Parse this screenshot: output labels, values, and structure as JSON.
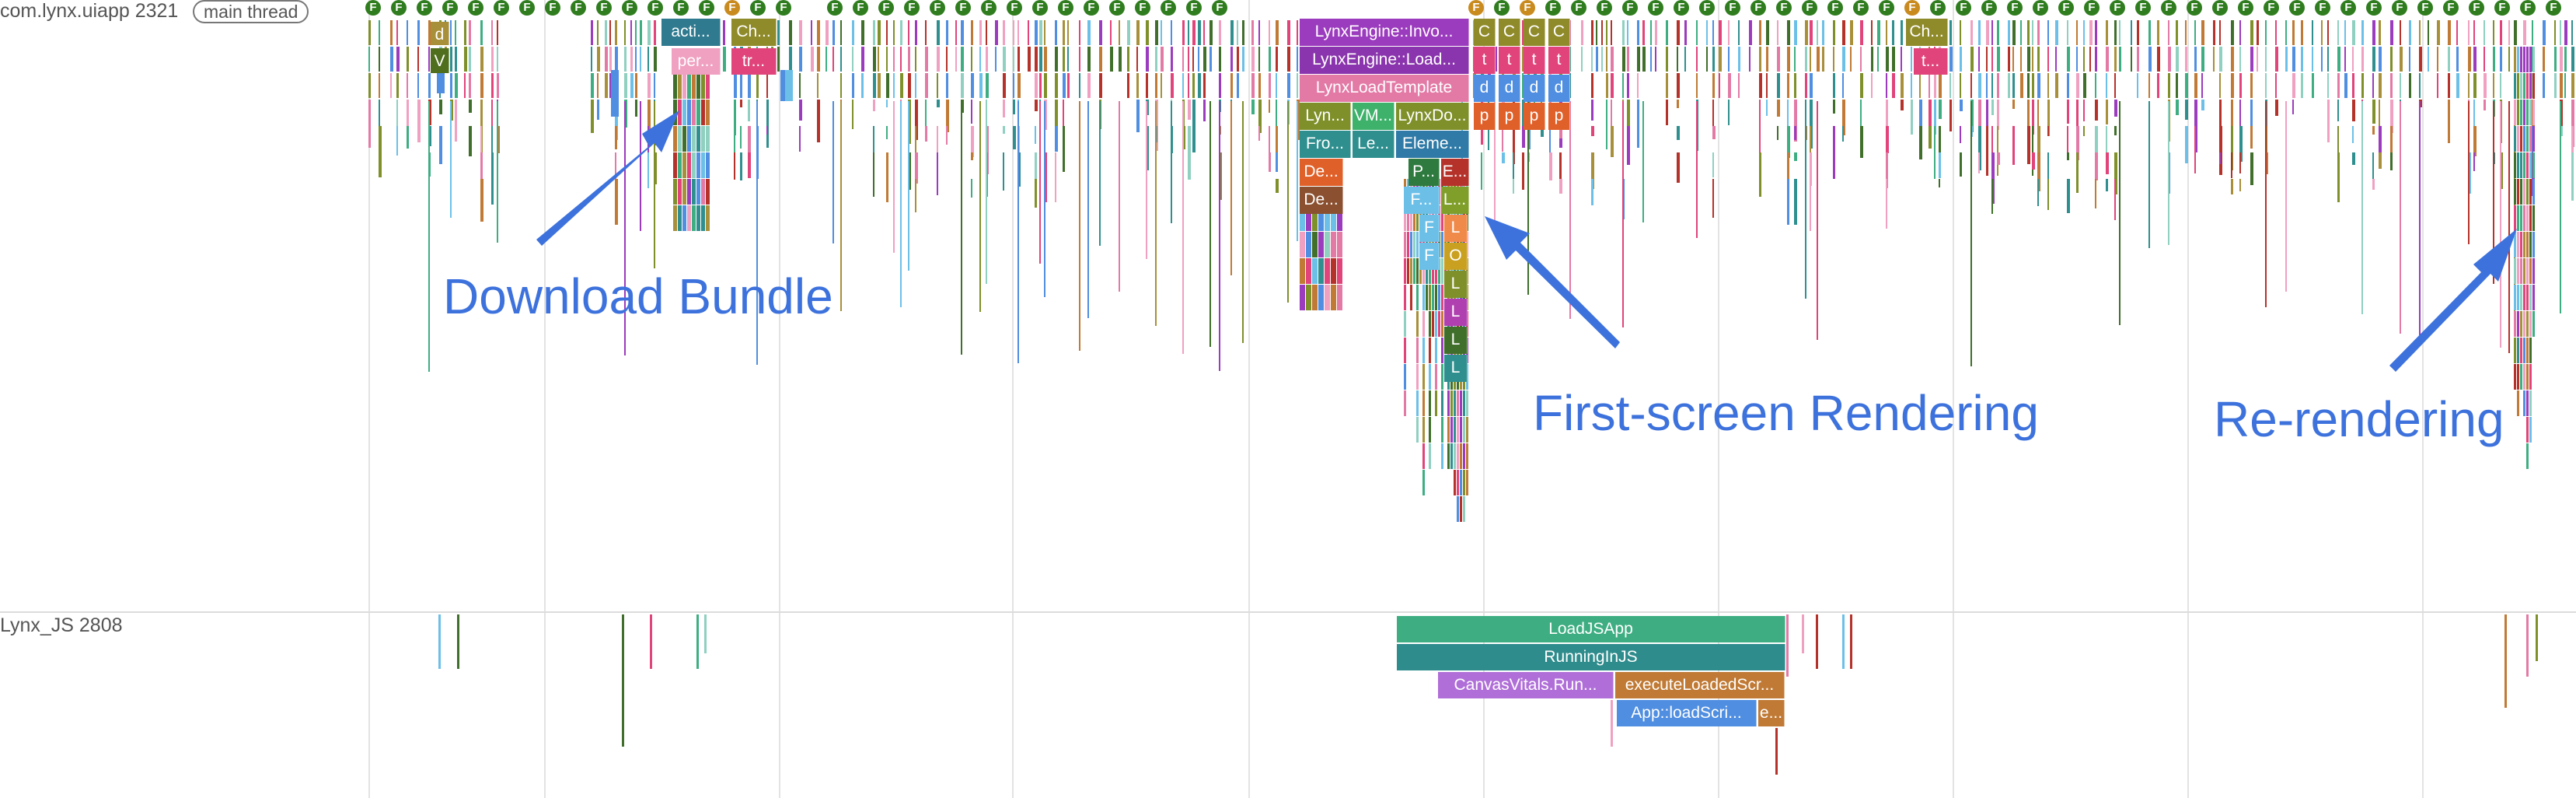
{
  "tracks": {
    "main": {
      "process": "com.lynx.uiapp 2321",
      "thread_chip": "main thread"
    },
    "js": {
      "process": "Lynx_JS 2808"
    }
  },
  "flag_glyph": "F",
  "main_slices": {
    "acti": "acti...",
    "per": "per...",
    "ch1": "Ch...",
    "tr": "tr...",
    "d": "d",
    "v": "V",
    "engine_invoke": "LynxEngine::Invo...",
    "engine_load": "LynxEngine::Load...",
    "load_template": "LynxLoadTemplate",
    "lyn": "Lyn...",
    "vm": "VM...",
    "lynx_do": "LynxDo...",
    "fro": "Fro...",
    "le": "Le...",
    "eleme": "Eleme...",
    "de1": "De...",
    "de2": "De...",
    "p": "P...",
    "e": "E...",
    "f_dot": "F...",
    "l_dot": "L...",
    "f1": "F",
    "f2": "F",
    "l1": "L",
    "o": "O",
    "l2": "L",
    "l3": "L",
    "l4": "L",
    "l5": "L",
    "c1": "C",
    "c2": "C",
    "c3": "C",
    "c4": "C",
    "t1": "t",
    "t2": "t",
    "t3": "t",
    "t4": "t",
    "dd1": "d",
    "dd2": "d",
    "dd3": "d",
    "dd4": "d",
    "p1": "p",
    "p2": "p",
    "p3": "p",
    "p4": "p",
    "ch2": "Ch...",
    "t_dot": "t..."
  },
  "js_slices": {
    "load_js_app": "LoadJSApp",
    "running_in_js": "RunningInJS",
    "canvas_vitals": "CanvasVitals.Run...",
    "execute_loaded": "executeLoadedScr...",
    "app_load_script": "App::loadScri...",
    "e": "e..."
  },
  "annotations": {
    "download_bundle": "Download Bundle",
    "first_screen": "First-screen Rendering",
    "re_rendering": "Re-rendering"
  },
  "colors": {
    "annotation_blue": "#3d72dd",
    "flag_green": "#2f7d1e",
    "flag_orange": "#c98a1e",
    "load_js_app": "#3eae82",
    "running_in_js": "#2f8c8c",
    "canvas_vitals": "#b06fd8",
    "execute_loaded": "#c07a35",
    "app_load_script": "#4f8ee0",
    "engine_purple": "#9b3bbd",
    "load_template_pink": "#e37aa6",
    "teal": "#2f8f8f",
    "olive": "#7f8f2a",
    "dark_green": "#3f6f2a",
    "sky": "#6cc0e8"
  }
}
